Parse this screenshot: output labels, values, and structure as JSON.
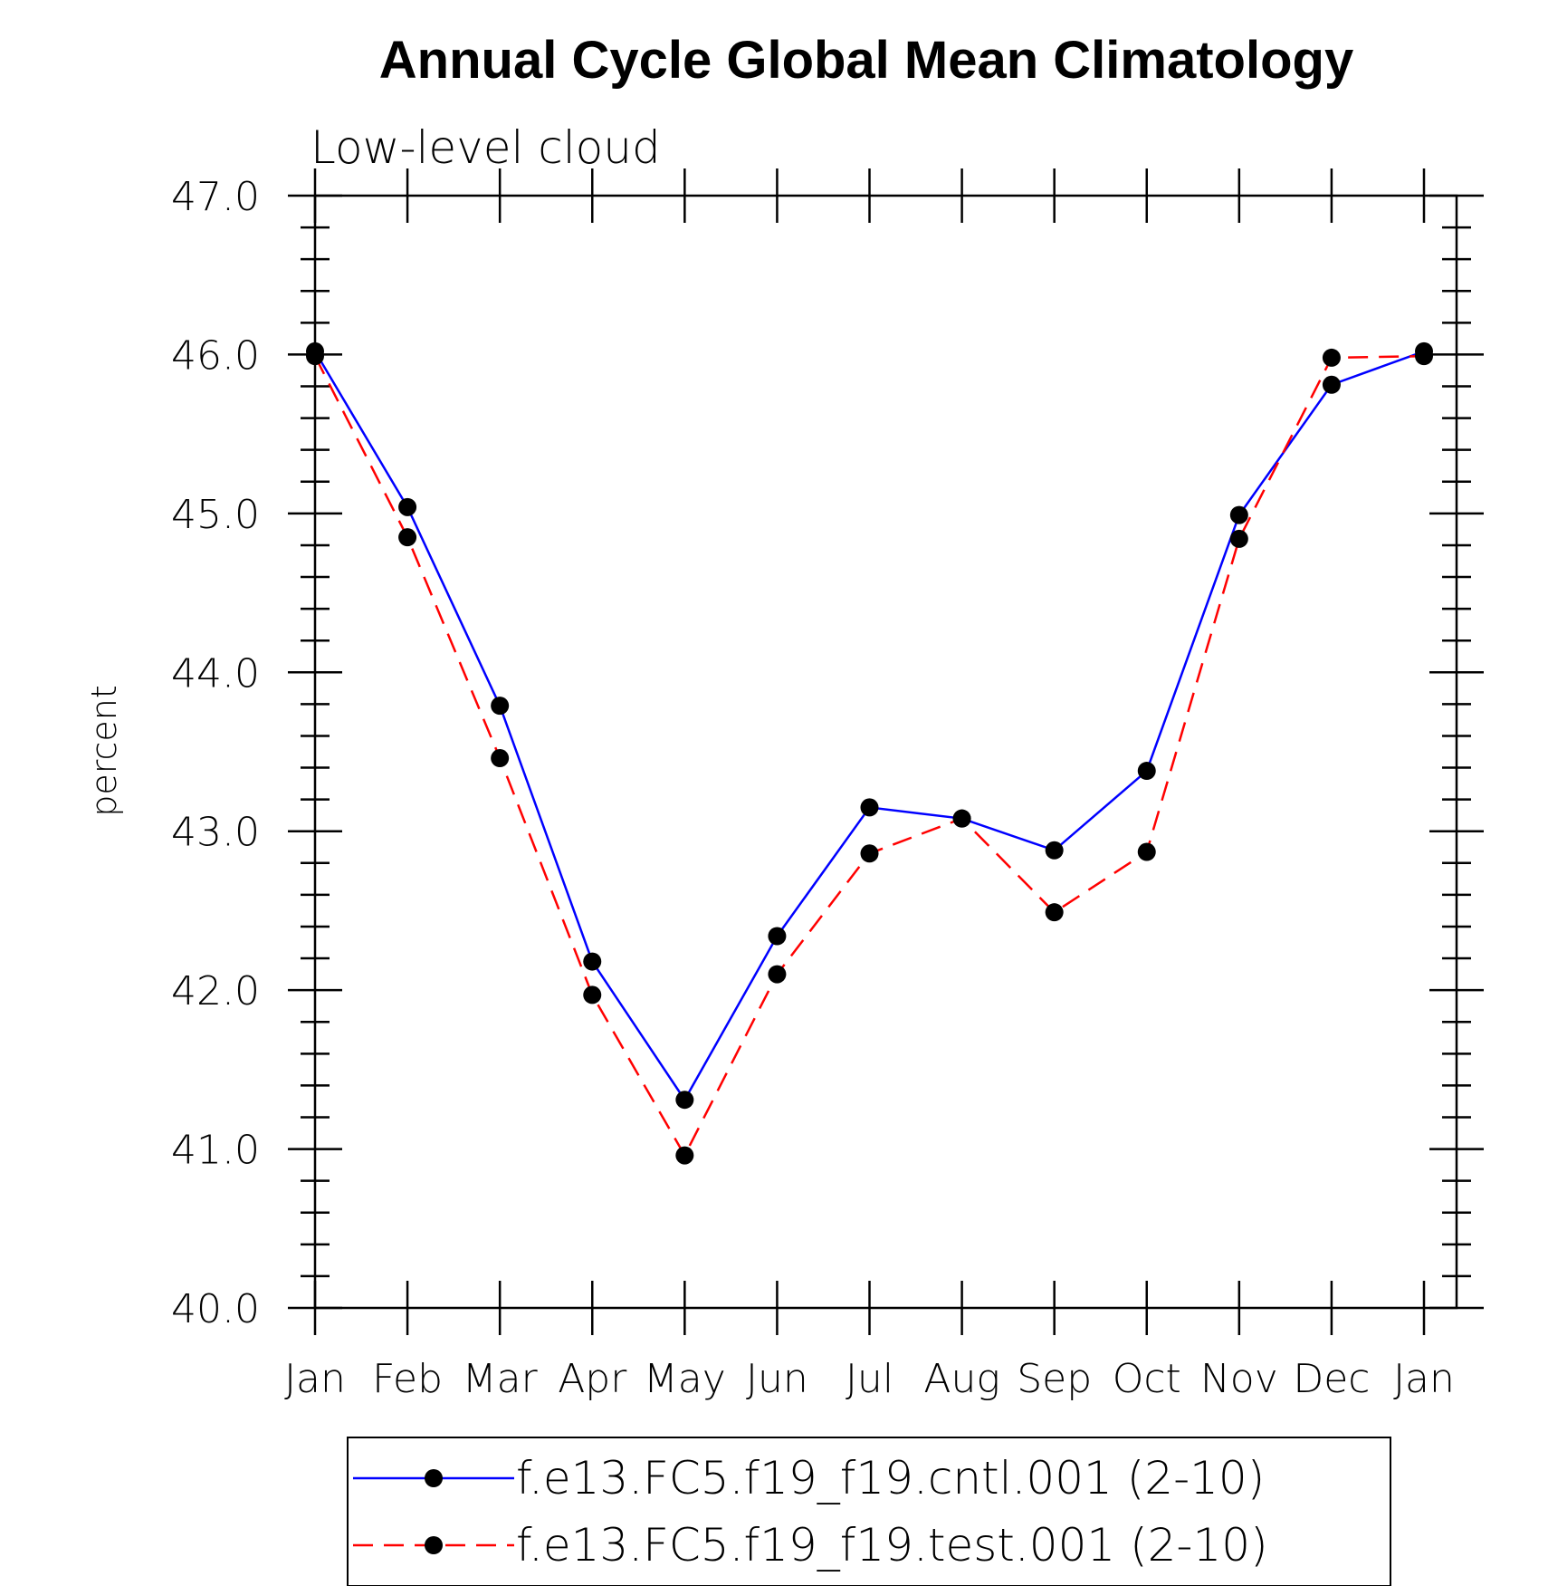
{
  "chart_data": {
    "type": "line",
    "title": "Annual Cycle Global Mean Climatology",
    "subtitle": "Low-level cloud",
    "xlabel": "",
    "ylabel": "percent",
    "categories": [
      "Jan",
      "Feb",
      "Mar",
      "Apr",
      "May",
      "Jun",
      "Jul",
      "Aug",
      "Sep",
      "Oct",
      "Nov",
      "Dec",
      "Jan"
    ],
    "ylim": [
      40.0,
      47.0
    ],
    "yticks": [
      "40.0",
      "41.0",
      "42.0",
      "43.0",
      "44.0",
      "45.0",
      "46.0",
      "47.0"
    ],
    "grid": false,
    "legend_position": "bottom",
    "series": [
      {
        "name": "f.e13.FC5.f19_f19.cntl.001 (2-10)",
        "color": "#0000ff",
        "line_style": "solid",
        "marker": "filled-circle",
        "values": [
          46.02,
          45.04,
          43.79,
          42.18,
          41.31,
          42.34,
          43.15,
          43.08,
          42.88,
          43.38,
          44.99,
          45.81,
          46.02
        ]
      },
      {
        "name": "f.e13.FC5.f19_f19.test.001 (2-10)",
        "color": "#ff0000",
        "line_style": "dashed",
        "marker": "filled-circle",
        "values": [
          45.99,
          44.85,
          43.46,
          41.97,
          40.96,
          42.1,
          42.86,
          43.08,
          42.49,
          42.87,
          44.84,
          45.98,
          45.99
        ]
      }
    ]
  }
}
